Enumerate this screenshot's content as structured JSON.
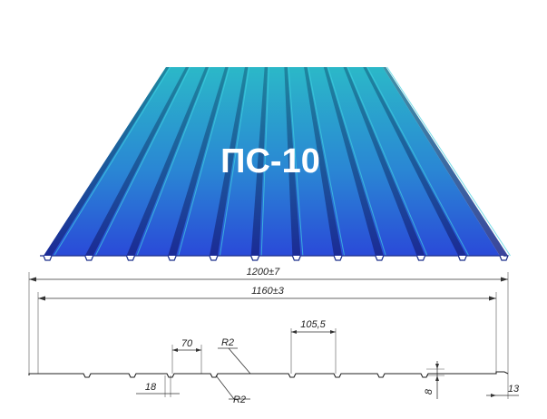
{
  "title": "ПС-10",
  "colors": {
    "sheet_top": "#2bb5c7",
    "sheet_bottom": "#2a4fd6",
    "rib_shadow": "#1a2e8a",
    "rib_highlight": "#3fd0e0",
    "profile_line": "#222222"
  },
  "dimensions": {
    "overall_width": "1200±7",
    "working_width": "1160±3",
    "rib_top_width": "70",
    "rib_pitch": "105,5",
    "radius_top": "R2",
    "radius_bottom": "R2",
    "rib_bottom_width": "18",
    "profile_height": "8",
    "edge_offset": "13"
  }
}
